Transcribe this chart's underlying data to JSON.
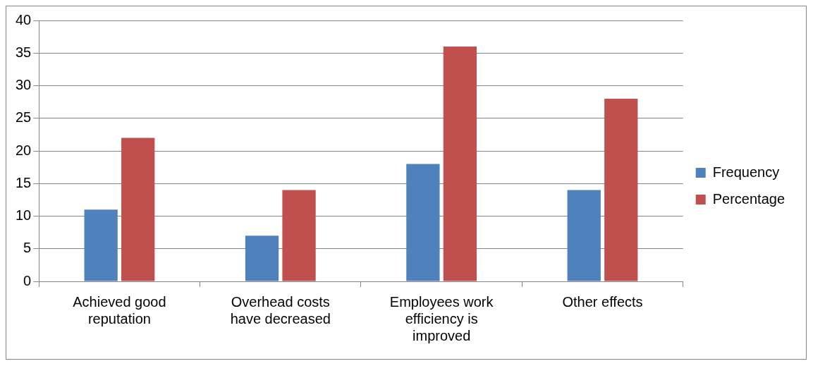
{
  "chart_data": {
    "type": "bar",
    "categories": [
      "Achieved good reputation",
      "Overhead costs have decreased",
      "Employees work efficiency is improved",
      "Other effects"
    ],
    "series": [
      {
        "name": "Frequency",
        "color": "#4f81bd",
        "values": [
          11,
          7,
          18,
          14
        ]
      },
      {
        "name": "Percentage",
        "color": "#c0504d",
        "values": [
          22,
          14,
          36,
          28
        ]
      }
    ],
    "ylim": [
      0,
      40
    ],
    "yticks": [
      0,
      5,
      10,
      15,
      20,
      25,
      30,
      35,
      40
    ],
    "grid": "y",
    "legend": "right"
  }
}
